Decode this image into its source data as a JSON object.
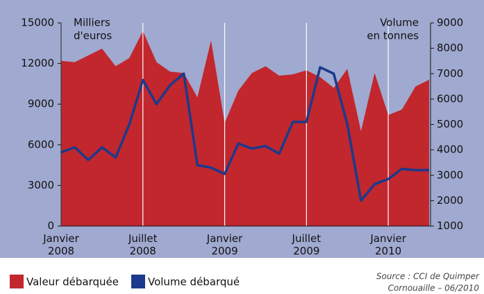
{
  "chart_data": {
    "type": "area-line",
    "ylabel": [
      "Milliers",
      "d'euros"
    ],
    "y2label": [
      "Volume",
      "en tonnes"
    ],
    "categories": [
      "Janvier 2008",
      null,
      null,
      null,
      null,
      null,
      "Juillet 2008",
      null,
      null,
      null,
      null,
      null,
      "Janvier 2009",
      null,
      null,
      null,
      null,
      null,
      "Juillet 2009",
      null,
      null,
      null,
      null,
      null,
      "Janvier 2010",
      null,
      null,
      null
    ],
    "series": [
      {
        "name": "Valeur débarquée",
        "color": "#c1272d",
        "kind": "area",
        "values": [
          12200,
          12100,
          12600,
          13100,
          11800,
          12400,
          14400,
          12100,
          11400,
          11300,
          9500,
          13700,
          7600,
          10000,
          11300,
          11800,
          11100,
          11200,
          11500,
          11000,
          10200,
          11600,
          7000,
          11300,
          8200,
          8600,
          10300,
          10800
        ]
      },
      {
        "name": "Volume débarqué",
        "color": "#1b3a8c",
        "kind": "line",
        "axis": "y2",
        "values": [
          3900,
          4100,
          3600,
          4100,
          3700,
          5000,
          6750,
          5800,
          6550,
          7000,
          3400,
          3300,
          3050,
          4250,
          4050,
          4150,
          3850,
          5100,
          5100,
          7250,
          7000,
          5000,
          2000,
          2650,
          2850,
          3250,
          3200,
          3200
        ]
      }
    ],
    "ylim": [
      0,
      15000
    ],
    "yticks": [
      0,
      3000,
      6000,
      9000,
      12000,
      15000
    ],
    "y2lim": [
      1000,
      9000
    ],
    "y2ticks": [
      1000,
      2000,
      3000,
      4000,
      5000,
      6000,
      7000,
      8000,
      9000
    ],
    "grid": true,
    "source": [
      "Source : CCI de Quimper",
      "Cornouaille – 06/2010"
    ]
  }
}
